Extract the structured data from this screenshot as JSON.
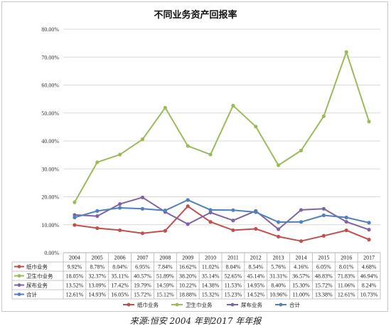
{
  "chart_data": {
    "type": "line",
    "title": "不同业务资产回报率",
    "categories": [
      "2004",
      "2005",
      "2006",
      "2007",
      "2008",
      "2009",
      "2010",
      "2011",
      "2012",
      "2013",
      "2014",
      "2015",
      "2016",
      "2017"
    ],
    "ylim": [
      0,
      80
    ],
    "yticks": [
      "0.00%",
      "10.00%",
      "20.00%",
      "30.00%",
      "40.00%",
      "50.00%",
      "60.00%",
      "70.00%",
      "80.00%"
    ],
    "grid": true,
    "legend_position": "bottom",
    "series": [
      {
        "name": "纸巾业务",
        "color": "#c0504d",
        "values": [
          9.92,
          8.78,
          8.04,
          6.95,
          7.84,
          16.62,
          11.02,
          8.04,
          8.54,
          5.76,
          4.16,
          6.05,
          8.01,
          4.68
        ],
        "labels": [
          "9.92%",
          "8.78%",
          "8.04%",
          "6.95%",
          "7.84%",
          "16.62%",
          "11.02%",
          "8.04%",
          "8.54%",
          "5.76%",
          "4.16%",
          "6.05%",
          "8.01%",
          "4.68%"
        ]
      },
      {
        "name": "卫生巾业务",
        "color": "#9bbb59",
        "values": [
          18.05,
          32.37,
          35.11,
          40.57,
          51.89,
          38.2,
          35.14,
          52.65,
          45.14,
          31.31,
          36.57,
          48.83,
          71.83,
          46.94
        ],
        "labels": [
          "18.05%",
          "32.37%",
          "35.11%",
          "40.57%",
          "51.89%",
          "38.20%",
          "35.14%",
          "52.65%",
          "45.14%",
          "31.31%",
          "36.57%",
          "48.83%",
          "71.83%",
          "46.94%"
        ]
      },
      {
        "name": "尿布业务",
        "color": "#8064a2",
        "values": [
          13.52,
          13.09,
          17.42,
          19.79,
          14.59,
          10.22,
          14.38,
          11.53,
          14.95,
          8.4,
          15.3,
          15.72,
          11.06,
          8.24
        ],
        "labels": [
          "13.52%",
          "13.09%",
          "17.42%",
          "19.79%",
          "14.59%",
          "10.22%",
          "14.38%",
          "11.53%",
          "14.95%",
          "8.40%",
          "15.30%",
          "15.72%",
          "11.06%",
          "8.24%"
        ]
      },
      {
        "name": "合计",
        "color": "#4f81bd",
        "values": [
          12.61,
          14.93,
          16.05,
          15.72,
          15.12,
          18.88,
          15.32,
          15.23,
          14.52,
          10.96,
          11.0,
          13.38,
          12.61,
          10.73
        ],
        "labels": [
          "12.61%",
          "14.93%",
          "16.05%",
          "15.72%",
          "15.12%",
          "18.88%",
          "15.32%",
          "15.23%",
          "14.52%",
          "10.96%",
          "11.00%",
          "13.38%",
          "12.61%",
          "10.73%"
        ]
      }
    ]
  },
  "source_text": "来源:恒安 2004 年到2017 年年报"
}
